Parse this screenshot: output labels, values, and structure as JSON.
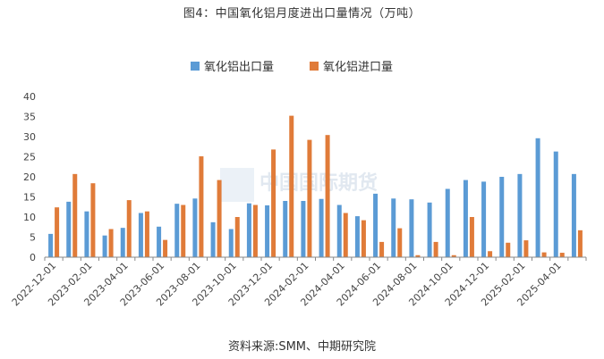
{
  "title": "图4：中国氧化铝月度进出口量情况（万吨）",
  "source": "资料来源:SMM、中期研究院",
  "watermark": "中国国际期货",
  "colors": {
    "export": "#5b9bd5",
    "import": "#e07b39",
    "axis": "#888888"
  },
  "chart_data": {
    "type": "bar",
    "ylim": [
      0,
      40
    ],
    "yticks": [
      0,
      5,
      10,
      15,
      20,
      25,
      30,
      35,
      40
    ],
    "legend_position": "top-right",
    "grid": false,
    "categories": [
      "2022-12-01",
      "2023-01-01",
      "2023-02-01",
      "2023-03-01",
      "2023-04-01",
      "2023-05-01",
      "2023-06-01",
      "2023-07-01",
      "2023-08-01",
      "2023-09-01",
      "2023-10-01",
      "2023-11-01",
      "2023-12-01",
      "2024-01-01",
      "2024-02-01",
      "2024-03-01",
      "2024-04-01",
      "2024-05-01",
      "2024-06-01",
      "2024-07-01",
      "2024-08-01",
      "2024-09-01",
      "2024-10-01",
      "2024-11-01",
      "2024-12-01",
      "2025-01-01",
      "2025-02-01",
      "2025-03-01",
      "2025-04-01",
      "2025-05-01"
    ],
    "tick_labels": [
      "2022-12-01",
      "2023-02-01",
      "2023-04-01",
      "2023-06-01",
      "2023-08-01",
      "2023-10-01",
      "2023-12-01",
      "2024-02-01",
      "2024-04-01",
      "2024-06-01",
      "2024-08-01",
      "2024-10-01",
      "2024-12-01",
      "2025-02-01",
      "2025-04-01"
    ],
    "series": [
      {
        "name": "氧化铝出口量",
        "values": [
          5.8,
          13.8,
          11.4,
          5.4,
          7.3,
          11.0,
          7.6,
          13.3,
          14.6,
          8.7,
          7.0,
          13.4,
          12.9,
          14.0,
          14.0,
          14.5,
          13.0,
          10.2,
          15.8,
          14.6,
          14.4,
          13.6,
          17.0,
          19.2,
          18.8,
          20.0,
          20.7,
          29.6,
          26.3,
          20.7
        ]
      },
      {
        "name": "氧化铝进口量",
        "values": [
          12.4,
          20.7,
          18.4,
          7.0,
          14.2,
          11.4,
          4.3,
          13.0,
          25.1,
          19.2,
          10.0,
          13.0,
          26.8,
          35.2,
          29.2,
          30.4,
          11.0,
          9.2,
          3.8,
          7.2,
          0.5,
          3.8,
          0.5,
          10.0,
          1.5,
          3.6,
          4.2,
          1.2,
          1.1,
          6.7
        ]
      }
    ]
  }
}
